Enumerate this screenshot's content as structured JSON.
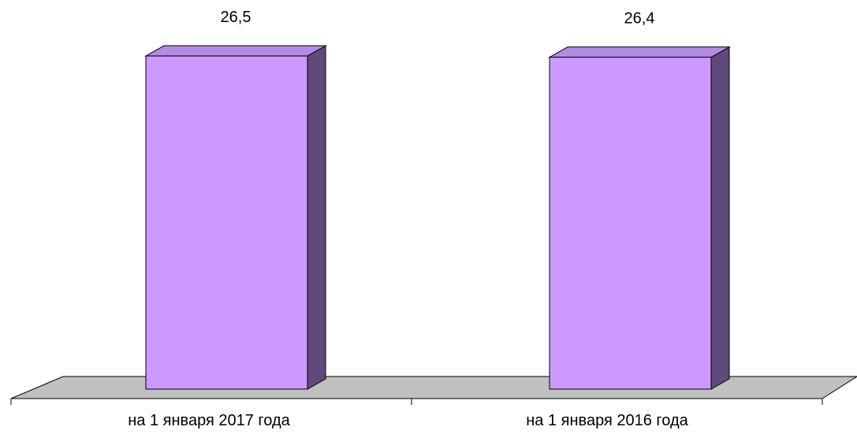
{
  "chart_data": {
    "type": "bar",
    "style": "3d",
    "categories": [
      "на 1 января 2017 года",
      "на 1 января 2016 года"
    ],
    "values": [
      26.5,
      26.4
    ],
    "data_labels": [
      "26,5",
      "26,4"
    ],
    "title": "",
    "xlabel": "",
    "ylabel": "",
    "grid": false,
    "legend": "none",
    "colors": {
      "bar_front": "#cc99ff",
      "bar_side": "#604a7b",
      "bar_top": "#b48ae6",
      "floor": "#c0c0c0",
      "outline": "#000000"
    }
  }
}
